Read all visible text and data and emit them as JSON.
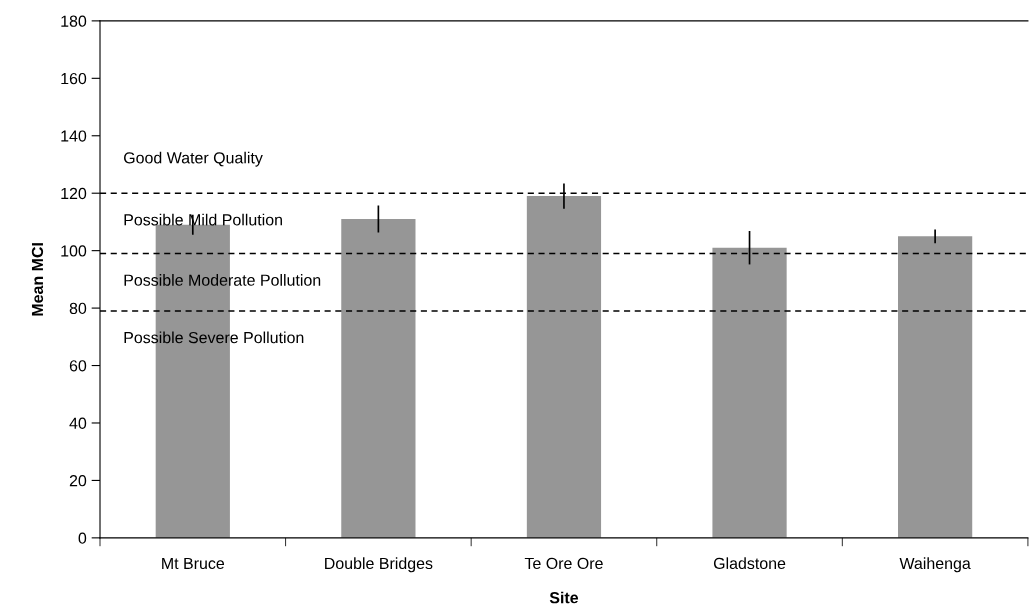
{
  "chart_data": {
    "type": "bar",
    "xlabel": "Site",
    "ylabel": "Mean MCI",
    "categories": [
      "Mt Bruce",
      "Double Bridges",
      "Te Ore Ore",
      "Gladstone",
      "Waihenga"
    ],
    "values": [
      109,
      111,
      119,
      101,
      105
    ],
    "errors": [
      3.5,
      4.7,
      4.4,
      5.8,
      2.4
    ],
    "color": "#969696",
    "ylim": [
      0,
      180
    ],
    "yticks": [
      0,
      20,
      40,
      60,
      80,
      100,
      120,
      140,
      160,
      180
    ],
    "grid": false,
    "legend": false,
    "ref_lines": [
      {
        "axis": "y",
        "value": 120,
        "color": "#000000",
        "line_style": "dashed"
      },
      {
        "axis": "y",
        "value": 99,
        "color": "#000000",
        "line_style": "dashed"
      },
      {
        "axis": "y",
        "value": 79,
        "color": "#000000",
        "line_style": "dashed"
      }
    ],
    "annotations": [
      "Good Water Quality",
      "Possible Mild Pollution",
      "Possible Moderate Pollution",
      "Possible Severe Pollution"
    ]
  }
}
